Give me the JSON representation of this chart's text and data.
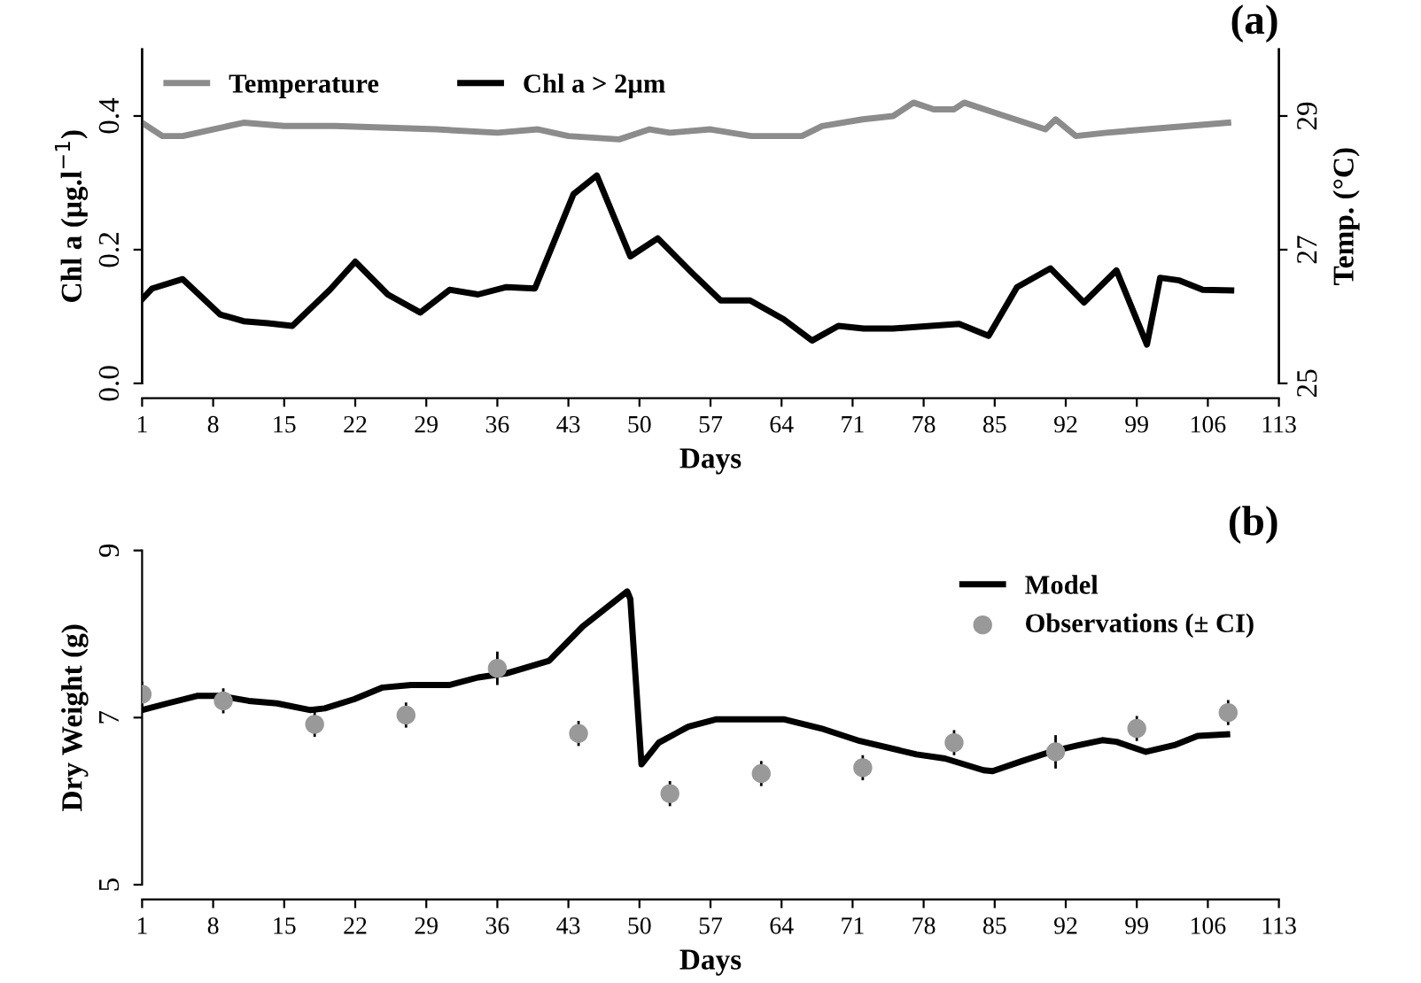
{
  "chart_data": [
    {
      "type": "line",
      "xlabel": "Days",
      "ylabel": "Chl a (µg.l$^{−1}$)",
      "y2label": "Temp. (°C)",
      "annotations": [
        "(a)"
      ],
      "xlim": [
        1,
        113
      ],
      "xticks": [
        1,
        8,
        15,
        22,
        29,
        36,
        43,
        50,
        57,
        64,
        71,
        78,
        85,
        92,
        99,
        106,
        113
      ],
      "ylim": [
        0,
        0.5
      ],
      "yticks": [
        {
          "value": 0,
          "label": "0.0"
        },
        0.2,
        0.4
      ],
      "y2lim": [
        25,
        30
      ],
      "y2ticks": [
        25,
        27,
        29
      ],
      "legend": "top left",
      "grid": false,
      "marker": "none",
      "line_style": "solid",
      "series": [
        {
          "name": "Temperature",
          "color": "#8c8c8c",
          "axis": "y2",
          "x": [
            1,
            3,
            5,
            8,
            11,
            15,
            20,
            30,
            36,
            40,
            43,
            48,
            51,
            53,
            57,
            61,
            64,
            66,
            68,
            72,
            75,
            77,
            79,
            81,
            82,
            85,
            88,
            90,
            91,
            93,
            96,
            100,
            104,
            108
          ],
          "values": [
            28.9,
            28.7,
            28.7,
            28.8,
            28.9,
            28.85,
            28.85,
            28.8,
            28.75,
            28.8,
            28.7,
            28.65,
            28.8,
            28.75,
            28.8,
            28.7,
            28.7,
            28.7,
            28.85,
            28.95,
            29.0,
            29.2,
            29.1,
            29.1,
            29.2,
            29.05,
            28.9,
            28.8,
            28.95,
            28.7,
            28.75,
            28.8,
            28.85,
            28.9
          ]
        },
        {
          "name": "Chl a > 2µm",
          "color": "#000000",
          "axis": "y",
          "x": [
            1,
            2,
            5,
            8.7,
            11,
            13.4,
            15.8,
            19.5,
            22,
            25.2,
            28.4,
            31.3,
            34.1,
            36.9,
            39.7,
            43.5,
            45.8,
            49.1,
            51.8,
            55.2,
            58,
            60.9,
            64.2,
            67,
            69.6,
            72.1,
            75,
            78.7,
            81.5,
            84.4,
            87.2,
            90.5,
            93.8,
            97,
            100,
            101.3,
            103.2,
            105.5,
            108.3
          ],
          "values": [
            0.126,
            0.142,
            0.156,
            0.103,
            0.093,
            0.09,
            0.086,
            0.14,
            0.182,
            0.133,
            0.106,
            0.14,
            0.133,
            0.144,
            0.142,
            0.283,
            0.311,
            0.19,
            0.217,
            0.165,
            0.124,
            0.124,
            0.096,
            0.064,
            0.086,
            0.082,
            0.082,
            0.086,
            0.089,
            0.071,
            0.144,
            0.172,
            0.121,
            0.169,
            0.058,
            0.158,
            0.154,
            0.14,
            0.139
          ]
        }
      ]
    },
    {
      "type": "line",
      "xlabel": "Days",
      "ylabel": "Dry Weight (g)",
      "annotations": [
        "(b)"
      ],
      "xlim": [
        1,
        113
      ],
      "xticks": [
        1,
        8,
        15,
        22,
        29,
        36,
        43,
        50,
        57,
        64,
        71,
        78,
        85,
        92,
        99,
        106,
        113
      ],
      "ylim": [
        5,
        9
      ],
      "yticks": [
        5,
        7,
        9
      ],
      "legend": "top right",
      "grid": false,
      "series": [
        {
          "name": "Model",
          "color": "#000000",
          "type": "line",
          "marker": "none",
          "x": [
            1,
            3.5,
            6.4,
            8.7,
            11.5,
            14.3,
            17.6,
            19,
            21.9,
            24.7,
            27.5,
            31.3,
            34.1,
            36.9,
            41.1,
            44.4,
            48.8,
            49.1,
            50.2,
            51.9,
            54.8,
            57.6,
            64.2,
            67.9,
            71.7,
            77.3,
            80.1,
            83.9,
            84.8,
            87.7,
            90.5,
            93.3,
            95.6,
            97,
            99.9,
            102.7,
            105,
            107.9
          ],
          "values": [
            7.09,
            7.17,
            7.26,
            7.26,
            7.2,
            7.17,
            7.09,
            7.11,
            7.22,
            7.36,
            7.39,
            7.39,
            7.48,
            7.53,
            7.68,
            8.09,
            8.51,
            8.42,
            6.44,
            6.7,
            6.89,
            6.98,
            6.98,
            6.87,
            6.72,
            6.56,
            6.51,
            6.37,
            6.36,
            6.48,
            6.59,
            6.67,
            6.73,
            6.71,
            6.59,
            6.67,
            6.78,
            6.8
          ]
        },
        {
          "name": "Observations (± CI)",
          "color": "#999999",
          "type": "scatter",
          "marker": "circle",
          "x": [
            1,
            9,
            18,
            27,
            36,
            44,
            53,
            62,
            72,
            81,
            91,
            99,
            108
          ],
          "values": [
            7.28,
            7.2,
            6.92,
            7.03,
            7.59,
            6.81,
            6.09,
            6.33,
            6.4,
            6.7,
            6.59,
            6.87,
            7.06
          ],
          "errors": [
            0.15,
            0.15,
            0.15,
            0.15,
            0.2,
            0.15,
            0.15,
            0.15,
            0.15,
            0.15,
            0.2,
            0.15,
            0.15
          ]
        }
      ]
    }
  ]
}
